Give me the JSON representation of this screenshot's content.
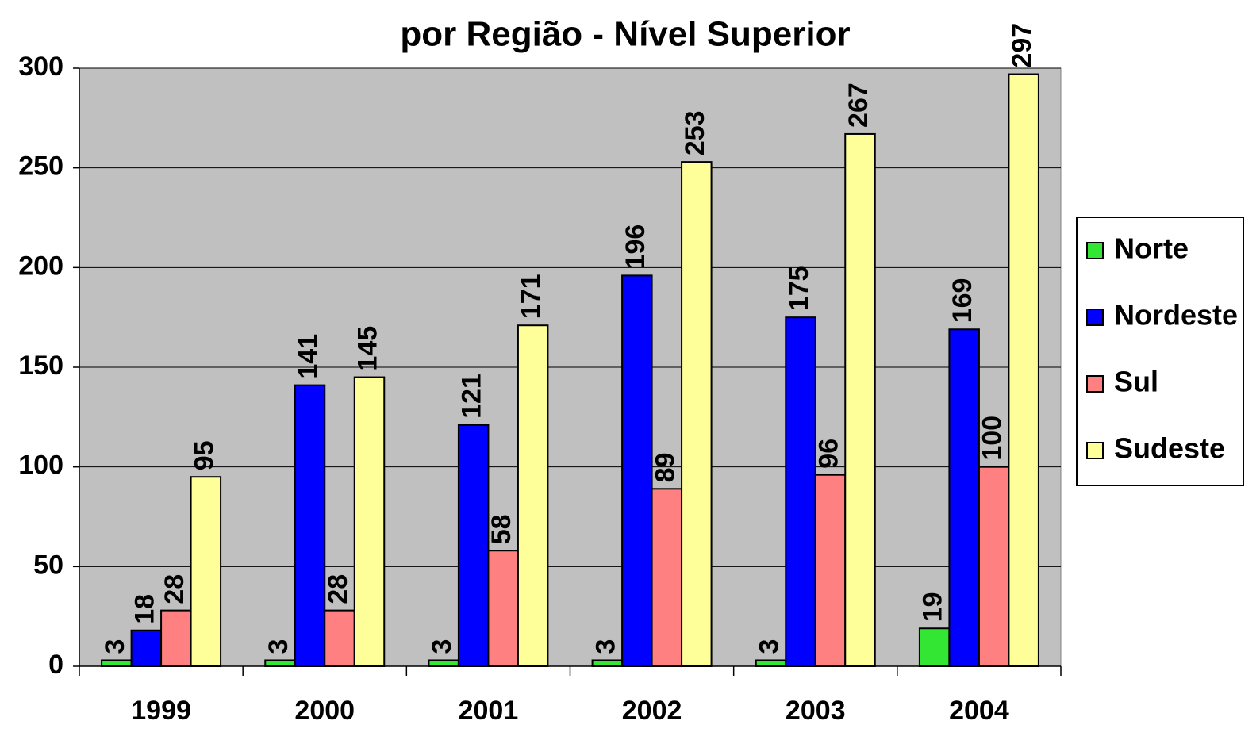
{
  "chart_data": {
    "type": "bar",
    "title": "por Região - Nível Superior",
    "categories": [
      "1999",
      "2000",
      "2001",
      "2002",
      "2003",
      "2004"
    ],
    "series": [
      {
        "name": "Norte",
        "color": "#33e633",
        "values": [
          3,
          3,
          3,
          3,
          3,
          19
        ]
      },
      {
        "name": "Nordeste",
        "color": "#0000ff",
        "values": [
          18,
          141,
          121,
          196,
          175,
          169
        ]
      },
      {
        "name": "Sul",
        "color": "#ff8080",
        "values": [
          28,
          28,
          58,
          89,
          96,
          100
        ]
      },
      {
        "name": "Sudeste",
        "color": "#ffff99",
        "values": [
          95,
          145,
          171,
          253,
          267,
          297
        ]
      }
    ],
    "ylim": [
      0,
      300
    ],
    "yticks": [
      0,
      50,
      100,
      150,
      200,
      250,
      300
    ],
    "grid": true,
    "legend": "right"
  }
}
